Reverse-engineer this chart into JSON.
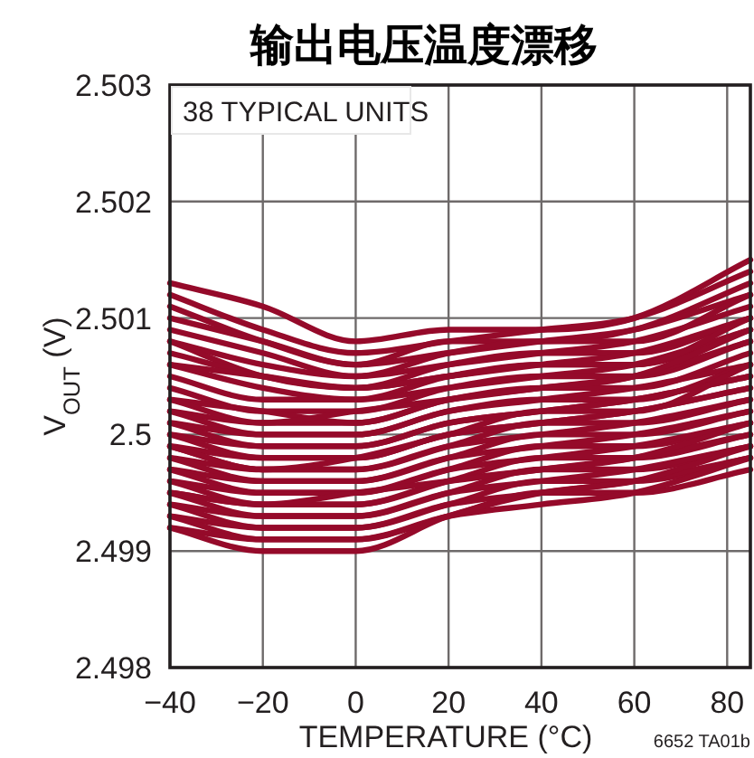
{
  "chart_data": {
    "type": "line",
    "title": "输出电压温度漂移",
    "xlabel": "TEMPERATURE (°C)",
    "ylabel": "V$_{OUT}$ (V)",
    "annotations": [
      "38 TYPICAL UNITS",
      "6652 TA01b"
    ],
    "x": [
      -40,
      -20,
      0,
      20,
      40,
      60,
      85
    ],
    "xlim": [
      -40,
      85
    ],
    "ylim": [
      2.498,
      2.503
    ],
    "xticks": [
      {
        "value": -40,
        "label": "−40"
      },
      {
        "value": -20,
        "label": "−20"
      },
      0,
      20,
      40,
      60,
      80
    ],
    "yticks": [
      2.498,
      2.499,
      2.5,
      2.501,
      2.502,
      2.503
    ],
    "grid": true,
    "marker": "none",
    "line_style": "solid",
    "series": [
      {
        "color": "#950a2a",
        "values": [
          2.5013,
          2.5011,
          2.5008,
          2.5009,
          2.5009,
          2.501,
          2.5015
        ]
      },
      {
        "color": "#950a2a",
        "values": [
          2.5012,
          2.5009,
          2.5007,
          2.5008,
          2.5009,
          2.501,
          2.5014
        ]
      },
      {
        "color": "#950a2a",
        "values": [
          2.5011,
          2.5008,
          2.5006,
          2.5008,
          2.5008,
          2.5009,
          2.5013
        ]
      },
      {
        "color": "#950a2a",
        "values": [
          2.501,
          2.5008,
          2.5006,
          2.5007,
          2.5008,
          2.5009,
          2.5012
        ]
      },
      {
        "color": "#950a2a",
        "values": [
          2.5009,
          2.5007,
          2.5005,
          2.5007,
          2.5008,
          2.5008,
          2.5012
        ]
      },
      {
        "color": "#950a2a",
        "values": [
          2.5008,
          2.5006,
          2.5005,
          2.5006,
          2.5007,
          2.5008,
          2.5011
        ]
      },
      {
        "color": "#950a2a",
        "values": [
          2.5008,
          2.5005,
          2.5004,
          2.5006,
          2.5007,
          2.5007,
          2.501
        ]
      },
      {
        "color": "#950a2a",
        "values": [
          2.5007,
          2.5005,
          2.5004,
          2.5005,
          2.5006,
          2.5007,
          2.501
        ]
      },
      {
        "color": "#950a2a",
        "values": [
          2.5006,
          2.5004,
          2.5003,
          2.5005,
          2.5006,
          2.5006,
          2.5009
        ]
      },
      {
        "color": "#950a2a",
        "values": [
          2.5005,
          2.5003,
          2.5003,
          2.5004,
          2.5005,
          2.5006,
          2.5009
        ]
      },
      {
        "color": "#950a2a",
        "values": [
          2.5004,
          2.5002,
          2.5002,
          2.5004,
          2.5005,
          2.5005,
          2.5008
        ]
      },
      {
        "color": "#950a2a",
        "values": [
          2.5003,
          2.5002,
          2.5001,
          2.5003,
          2.5004,
          2.5005,
          2.5008
        ]
      },
      {
        "color": "#950a2a",
        "values": [
          2.5002,
          2.5001,
          2.5001,
          2.5003,
          2.5004,
          2.5004,
          2.5007
        ]
      },
      {
        "color": "#950a2a",
        "values": [
          2.5002,
          2.5,
          2.5,
          2.5002,
          2.5003,
          2.5004,
          2.5006
        ]
      },
      {
        "color": "#950a2a",
        "values": [
          2.5001,
          2.5,
          2.5,
          2.5002,
          2.5003,
          2.5003,
          2.5006
        ]
      },
      {
        "color": "#950a2a",
        "values": [
          2.5001,
          2.4999,
          2.4999,
          2.5001,
          2.5002,
          2.5003,
          2.5005
        ]
      },
      {
        "color": "#950a2a",
        "values": [
          2.5,
          2.4999,
          2.4999,
          2.5001,
          2.5002,
          2.5003,
          2.5005
        ]
      },
      {
        "color": "#950a2a",
        "values": [
          2.5,
          2.4998,
          2.4998,
          2.5,
          2.5001,
          2.5002,
          2.5004
        ]
      },
      {
        "color": "#950a2a",
        "values": [
          2.4999,
          2.4998,
          2.4998,
          2.5,
          2.5001,
          2.5002,
          2.5004
        ]
      },
      {
        "color": "#950a2a",
        "values": [
          2.4999,
          2.4997,
          2.4997,
          2.4999,
          2.5001,
          2.5001,
          2.5003
        ]
      },
      {
        "color": "#950a2a",
        "values": [
          2.4998,
          2.4997,
          2.4997,
          2.4999,
          2.5,
          2.5001,
          2.5003
        ]
      },
      {
        "color": "#950a2a",
        "values": [
          2.4998,
          2.4996,
          2.4996,
          2.4998,
          2.5,
          2.5,
          2.5002
        ]
      },
      {
        "color": "#950a2a",
        "values": [
          2.4997,
          2.4996,
          2.4996,
          2.4998,
          2.4999,
          2.5,
          2.5002
        ]
      },
      {
        "color": "#950a2a",
        "values": [
          2.4997,
          2.4995,
          2.4995,
          2.4997,
          2.4999,
          2.4999,
          2.5001
        ]
      },
      {
        "color": "#950a2a",
        "values": [
          2.4996,
          2.4995,
          2.4995,
          2.4997,
          2.4998,
          2.4999,
          2.5001
        ]
      },
      {
        "color": "#950a2a",
        "values": [
          2.4996,
          2.4994,
          2.4994,
          2.4996,
          2.4998,
          2.4998,
          2.5
        ]
      },
      {
        "color": "#950a2a",
        "values": [
          2.4995,
          2.4994,
          2.4994,
          2.4996,
          2.4997,
          2.4998,
          2.5
        ]
      },
      {
        "color": "#950a2a",
        "values": [
          2.4995,
          2.4993,
          2.4993,
          2.4995,
          2.4997,
          2.4997,
          2.4999
        ]
      },
      {
        "color": "#950a2a",
        "values": [
          2.4994,
          2.4993,
          2.4993,
          2.4995,
          2.4996,
          2.4997,
          2.4999
        ]
      },
      {
        "color": "#950a2a",
        "values": [
          2.4994,
          2.4992,
          2.4992,
          2.4994,
          2.4996,
          2.4996,
          2.4998
        ]
      },
      {
        "color": "#950a2a",
        "values": [
          2.4993,
          2.4992,
          2.4992,
          2.4994,
          2.4995,
          2.4996,
          2.4998
        ]
      },
      {
        "color": "#950a2a",
        "values": [
          2.4993,
          2.4991,
          2.4991,
          2.4993,
          2.4995,
          2.4995,
          2.4997
        ]
      },
      {
        "color": "#950a2a",
        "values": [
          2.4992,
          2.4991,
          2.4991,
          2.4993,
          2.4994,
          2.4995,
          2.4998
        ]
      },
      {
        "color": "#950a2a",
        "values": [
          2.4992,
          2.499,
          2.499,
          2.4993,
          2.4995,
          2.4996,
          2.4999
        ]
      },
      {
        "color": "#950a2a",
        "values": [
          2.5006,
          2.5005,
          2.5004,
          2.5005,
          2.5006,
          2.5006,
          2.501
        ]
      },
      {
        "color": "#950a2a",
        "values": [
          2.4999,
          2.4997,
          2.4998,
          2.5,
          2.5002,
          2.5002,
          2.5006
        ]
      },
      {
        "color": "#950a2a",
        "values": [
          2.5003,
          2.5001,
          2.5002,
          2.5003,
          2.5004,
          2.5005,
          2.5009
        ]
      },
      {
        "color": "#950a2a",
        "values": [
          2.4995,
          2.4994,
          2.4995,
          2.4996,
          2.4997,
          2.4998,
          2.5001
        ]
      }
    ]
  }
}
